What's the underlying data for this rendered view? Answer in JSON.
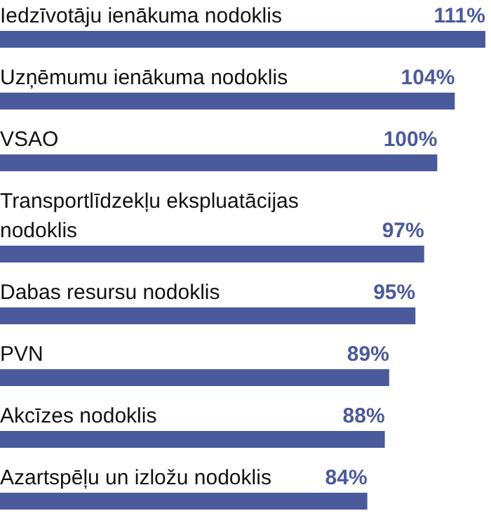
{
  "chart_data": {
    "type": "bar",
    "orientation": "horizontal",
    "categories": [
      "Iedzīvotāju ienākuma nodoklis",
      "Uzņēmumu ienākuma nodoklis",
      "VSAO",
      "Transportlīdzekļu ekspluatācijas nodoklis",
      "Dabas resursu nodoklis",
      "PVN",
      "Akcīzes nodoklis",
      "Azartspēļu un izložu nodoklis"
    ],
    "values": [
      111,
      104,
      100,
      97,
      95,
      89,
      88,
      84
    ],
    "value_labels": [
      "111%",
      "104%",
      "100%",
      "97%",
      "95%",
      "89%",
      "88%",
      "84%"
    ],
    "color": "#4b5a9b"
  }
}
